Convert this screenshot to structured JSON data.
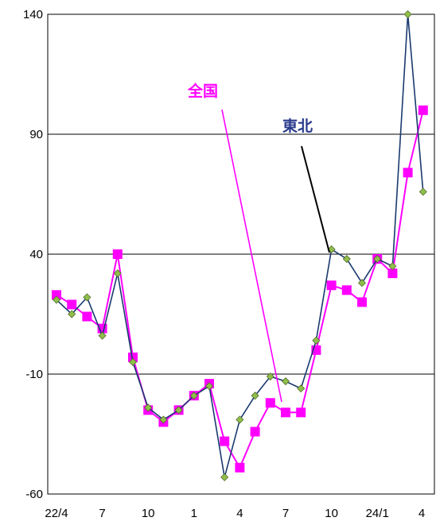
{
  "chart_data": {
    "type": "line",
    "ylim": [
      -60,
      140
    ],
    "yticks": [
      140,
      90,
      40,
      -10,
      -60
    ],
    "x_tick_labels": [
      {
        "label": "22/4",
        "index": 0
      },
      {
        "label": "7",
        "index": 3
      },
      {
        "label": "10",
        "index": 6
      },
      {
        "label": "1",
        "index": 9
      },
      {
        "label": "4",
        "index": 12
      },
      {
        "label": "7",
        "index": 15
      },
      {
        "label": "10",
        "index": 18
      },
      {
        "label": "24/1",
        "index": 21
      },
      {
        "label": "4",
        "index": 24
      }
    ],
    "grid": "horizontal",
    "series": [
      {
        "name": "全国",
        "color": "#ff00ff",
        "marker": "square",
        "values": [
          23,
          19,
          14,
          9,
          40,
          -3,
          -25,
          -30,
          -25,
          -19,
          -14,
          -38,
          -49,
          -34,
          -22,
          -26,
          -26,
          0,
          27,
          25,
          20,
          38,
          32,
          74,
          100
        ]
      },
      {
        "name": "東北",
        "color": "#1a3a6e",
        "marker": "diamond",
        "values": [
          21,
          15,
          22,
          6,
          32,
          -5,
          -24,
          -29,
          -25,
          -19,
          -15,
          -53,
          -29,
          -19,
          -11,
          -13,
          -16,
          4,
          42,
          38,
          28,
          38,
          35,
          140,
          66
        ]
      }
    ],
    "annotations": [
      {
        "text": "全国",
        "color": "#ff00ff"
      },
      {
        "text": "東北",
        "color": "#2a3a8c"
      }
    ]
  }
}
